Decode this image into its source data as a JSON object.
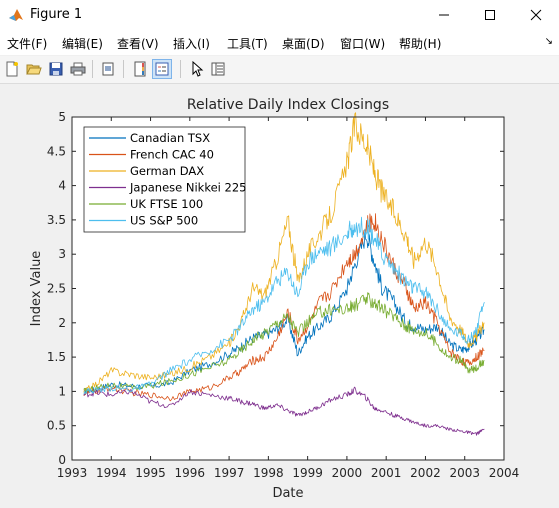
{
  "window": {
    "title": "Figure 1"
  },
  "menu": {
    "items": [
      {
        "label": "文件(F)"
      },
      {
        "label": "编辑(E)"
      },
      {
        "label": "查看(V)"
      },
      {
        "label": "插入(I)"
      },
      {
        "label": "工具(T)"
      },
      {
        "label": "桌面(D)"
      },
      {
        "label": "窗口(W)"
      },
      {
        "label": "帮助(H)"
      }
    ]
  },
  "toolbar": {
    "buttons": [
      "new-figure-icon",
      "open-file-icon",
      "save-icon",
      "print-icon",
      "print-preview-icon",
      "colorbar-icon",
      "legend-icon",
      "pointer-icon",
      "property-editor-icon"
    ]
  },
  "chart_data": {
    "type": "line",
    "title": "Relative Daily Index Closings",
    "xlabel": "Date",
    "ylabel": "Index Value",
    "xlim": [
      1993,
      2004
    ],
    "ylim": [
      0,
      5
    ],
    "xticks": [
      "1993",
      "1994",
      "1995",
      "1996",
      "1997",
      "1998",
      "1999",
      "2000",
      "2001",
      "2002",
      "2003",
      "2004"
    ],
    "yticks": [
      "0",
      "0.5",
      "1",
      "1.5",
      "2",
      "2.5",
      "3",
      "3.5",
      "4",
      "4.5",
      "5"
    ],
    "legend_position": "top-left",
    "x": [
      1993.3,
      1993.6,
      1994.0,
      1994.5,
      1995.0,
      1995.5,
      1996.0,
      1996.5,
      1997.0,
      1997.3,
      1997.6,
      1997.9,
      1998.2,
      1998.5,
      1998.75,
      1999.0,
      1999.3,
      1999.6,
      2000.0,
      2000.2,
      2000.5,
      2000.7,
      2000.9,
      2001.2,
      2001.5,
      2001.7,
      2002.0,
      2002.3,
      2002.6,
      2002.9,
      2003.1,
      2003.3,
      2003.5
    ],
    "series": [
      {
        "name": "Canadian TSX",
        "color": "#0072bd",
        "values": [
          1.0,
          1.03,
          1.1,
          1.08,
          1.07,
          1.12,
          1.3,
          1.4,
          1.55,
          1.65,
          1.78,
          1.82,
          1.9,
          2.05,
          1.55,
          1.8,
          1.95,
          2.1,
          2.5,
          2.85,
          3.3,
          2.9,
          2.5,
          2.3,
          2.0,
          1.95,
          1.9,
          1.95,
          1.7,
          1.6,
          1.65,
          1.75,
          1.9
        ]
      },
      {
        "name": "French CAC 40",
        "color": "#d95319",
        "values": [
          0.97,
          1.0,
          1.05,
          0.98,
          0.95,
          0.9,
          1.0,
          1.05,
          1.2,
          1.3,
          1.45,
          1.5,
          1.75,
          2.15,
          1.75,
          1.95,
          2.3,
          2.45,
          2.9,
          3.0,
          3.4,
          3.5,
          3.2,
          2.8,
          2.5,
          2.2,
          2.3,
          2.0,
          1.6,
          1.45,
          1.4,
          1.5,
          1.6
        ]
      },
      {
        "name": "German DAX",
        "color": "#edb120",
        "values": [
          1.0,
          1.1,
          1.3,
          1.25,
          1.2,
          1.25,
          1.35,
          1.5,
          1.7,
          2.0,
          2.5,
          2.4,
          2.9,
          3.5,
          2.6,
          3.0,
          3.3,
          3.6,
          4.3,
          4.9,
          4.6,
          4.2,
          3.9,
          3.6,
          3.3,
          2.9,
          3.2,
          2.8,
          2.1,
          1.9,
          1.7,
          1.8,
          2.0
        ]
      },
      {
        "name": "Japanese Nikkei 225",
        "color": "#7e2f8e",
        "values": [
          0.95,
          0.98,
          0.95,
          1.0,
          0.85,
          0.78,
          1.0,
          0.95,
          0.9,
          0.85,
          0.82,
          0.75,
          0.8,
          0.72,
          0.65,
          0.7,
          0.78,
          0.88,
          0.95,
          1.02,
          0.9,
          0.75,
          0.72,
          0.65,
          0.6,
          0.55,
          0.5,
          0.5,
          0.45,
          0.42,
          0.4,
          0.38,
          0.45
        ]
      },
      {
        "name": "UK FTSE 100",
        "color": "#77ac30",
        "values": [
          1.0,
          1.05,
          1.1,
          1.05,
          1.08,
          1.15,
          1.25,
          1.35,
          1.45,
          1.6,
          1.75,
          1.85,
          2.0,
          2.1,
          1.85,
          2.0,
          2.15,
          2.2,
          2.2,
          2.25,
          2.35,
          2.3,
          2.2,
          2.1,
          1.95,
          1.9,
          1.85,
          1.7,
          1.5,
          1.45,
          1.3,
          1.35,
          1.45
        ]
      },
      {
        "name": "US S&P 500",
        "color": "#4dbeee",
        "values": [
          1.0,
          1.02,
          1.05,
          1.03,
          1.1,
          1.3,
          1.45,
          1.6,
          1.75,
          1.95,
          2.2,
          2.3,
          2.6,
          2.75,
          2.4,
          2.9,
          3.05,
          3.1,
          3.3,
          3.4,
          3.4,
          3.25,
          3.0,
          2.8,
          2.6,
          2.5,
          2.45,
          2.2,
          1.9,
          1.85,
          1.75,
          1.9,
          2.3
        ]
      }
    ]
  }
}
